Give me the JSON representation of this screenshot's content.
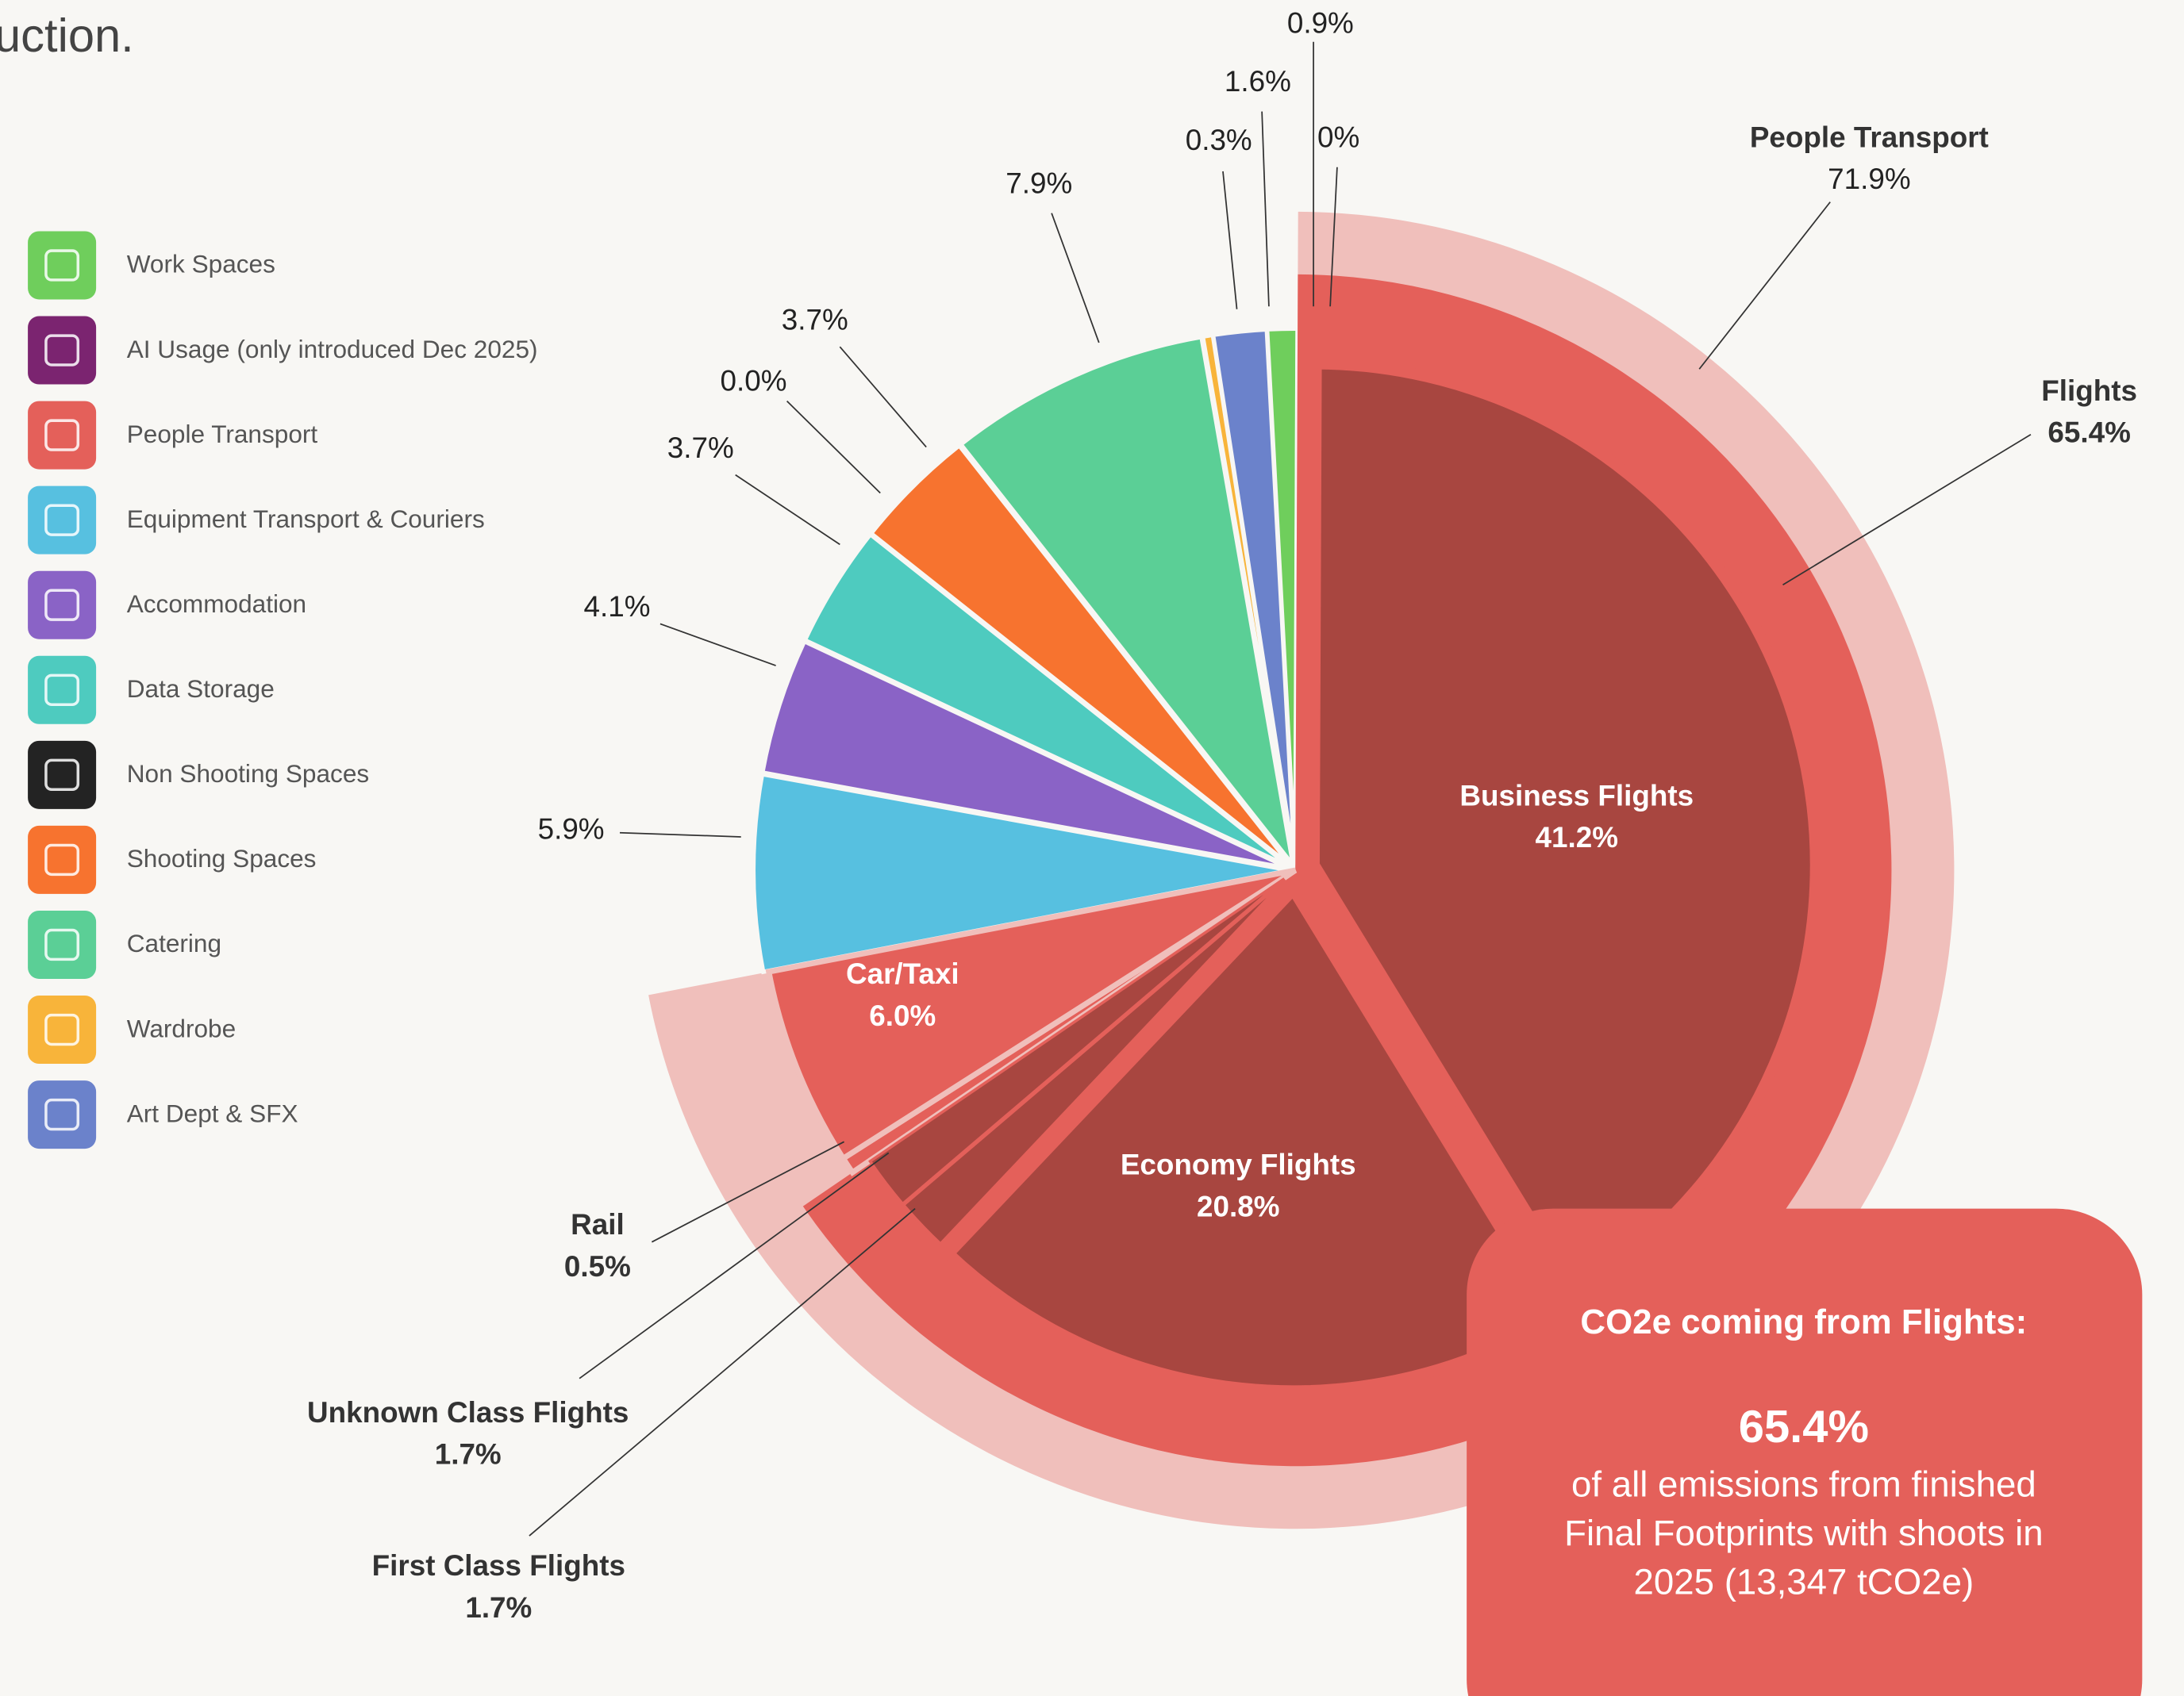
{
  "intro_text": "uction.",
  "chart_data": {
    "type": "pie",
    "categories": [
      "Work Spaces",
      "AI Usage (only introduced Dec 2025)",
      "People Transport",
      "Equipment Transport & Couriers",
      "Accommodation",
      "Data Storage",
      "Non Shooting Spaces",
      "Shooting Spaces",
      "Catering",
      "Wardrobe",
      "Art Dept & SFX"
    ],
    "values": [
      0.9,
      0,
      71.9,
      5.9,
      4.1,
      3.7,
      0.0,
      3.7,
      7.9,
      0.3,
      1.6
    ],
    "value_labels": [
      "0.9%",
      "0%",
      "71.9%",
      "5.9%",
      "4.1%",
      "3.7%",
      "0.0%",
      "3.7%",
      "7.9%",
      "0.3%",
      "1.6%"
    ],
    "colors": [
      "#6fce5c",
      "#7b2470",
      "#f0bfbb",
      "#57c0e0",
      "#8a63c6",
      "#4ecbbf",
      "#232323",
      "#f7732f",
      "#5bcf96",
      "#f8b43a",
      "#6b82cb"
    ],
    "breakdown": {
      "categories": [
        "Flights",
        "Rail",
        "Car/Taxi"
      ],
      "values": [
        65.4,
        0.5,
        6.0
      ],
      "value_labels": [
        "65.4%",
        "0.5%",
        "6.0%"
      ],
      "color": "#e4605a"
    },
    "flight_classes": {
      "categories": [
        "Business Flights",
        "Economy Flights",
        "First Class Flights",
        "Unknown Class Flights"
      ],
      "values": [
        41.2,
        20.8,
        1.7,
        1.7
      ],
      "value_labels": [
        "41.2%",
        "20.8%",
        "1.7%",
        "1.7%"
      ],
      "color": "#a84640"
    }
  },
  "callout": {
    "title": "CO2e coming from Flights:",
    "value_label": "65.4%",
    "text_lines": [
      "of all emissions from finished",
      "Final Footprints with shoots in",
      "2025 (13,347 tCO2e)"
    ]
  }
}
